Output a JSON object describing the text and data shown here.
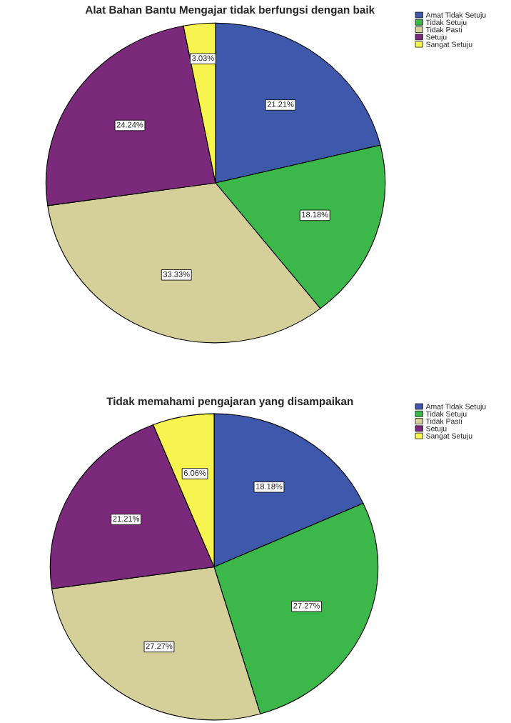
{
  "chart_data": [
    {
      "type": "pie",
      "title": "Alat Bahan Bantu Mengajar tidak berfungsi dengan baik",
      "categories": [
        "Amat Tidak Setuju",
        "Tidak Setuju",
        "Tidak Pasti",
        "Setuju",
        "Sangat Setuju"
      ],
      "values": [
        21.21,
        18.18,
        33.33,
        24.24,
        3.03
      ],
      "value_labels": [
        "21.21%",
        "18.18%",
        "33.33%",
        "24.24%",
        "3.03%"
      ],
      "colors": [
        "#3e58ac",
        "#3cb84a",
        "#d5cf9a",
        "#7b2a7b",
        "#f7f450"
      ],
      "legend": "top right"
    },
    {
      "type": "pie",
      "title": "Tidak memahami pengajaran yang disampaikan",
      "categories": [
        "Amat Tidak Setuju",
        "Tidak Setuju",
        "Tidak Pasti",
        "Setuju",
        "Sangat Setuju"
      ],
      "values": [
        18.18,
        27.27,
        27.27,
        21.21,
        6.06
      ],
      "value_labels": [
        "18.18%",
        "27.27%",
        "27.27%",
        "21.21%",
        "6.06%"
      ],
      "colors": [
        "#3e58ac",
        "#3cb84a",
        "#d5cf9a",
        "#7b2a7b",
        "#f7f450"
      ],
      "legend": "top right"
    }
  ]
}
